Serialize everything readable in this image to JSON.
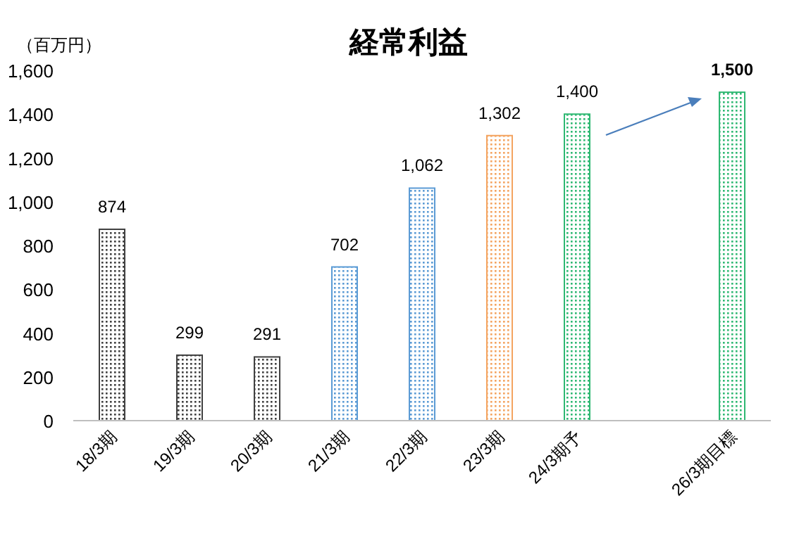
{
  "chart_data": {
    "type": "bar",
    "title": "経常利益",
    "ylabel": "（百万円）",
    "categories": [
      "18/3期",
      "19/3期",
      "20/3期",
      "21/3期",
      "22/3期",
      "23/3期",
      "24/3期予",
      null,
      "26/3期目標"
    ],
    "values": [
      874,
      299,
      291,
      702,
      1062,
      1302,
      1400,
      null,
      1500
    ],
    "colors": [
      "#404040",
      "#404040",
      "#404040",
      "#5b9bd5",
      "#5b9bd5",
      "#f4a460",
      "#2eb872",
      "#2eb872",
      "#2eb872"
    ],
    "value_labels": [
      "874",
      "299",
      "291",
      "702",
      "1,062",
      "1,302",
      "1,400",
      null,
      "1,500"
    ],
    "ylim": [
      0,
      1600
    ],
    "yticks": [
      0,
      200,
      400,
      600,
      800,
      {
        "value": 1000,
        "label": "1,000"
      },
      {
        "value": 1200,
        "label": "1,200"
      },
      {
        "value": 1400,
        "label": "1,400"
      },
      {
        "value": 1600,
        "label": "1,600"
      }
    ],
    "grid": false
  }
}
